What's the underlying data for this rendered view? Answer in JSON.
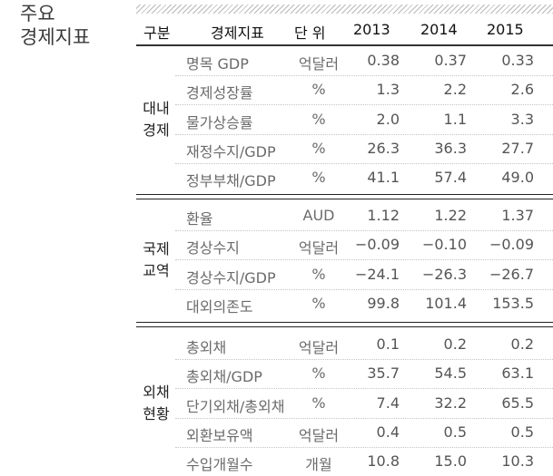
{
  "title": {
    "line1": "주요",
    "line2": "경제지표"
  },
  "header": {
    "category": "구분",
    "indicator": "경제지표",
    "unit": "단 위",
    "years": [
      "2013",
      "2014",
      "2015"
    ]
  },
  "groups": [
    {
      "label": [
        "대내",
        "경제"
      ],
      "rows": [
        {
          "name": "명목 GDP",
          "unit": "억달러",
          "values": [
            "0.38",
            "0.37",
            "0.33"
          ]
        },
        {
          "name": "경제성장률",
          "unit": "%",
          "values": [
            "1.3",
            "2.2",
            "2.6"
          ]
        },
        {
          "name": "물가상승률",
          "unit": "%",
          "values": [
            "2.0",
            "1.1",
            "3.3"
          ]
        },
        {
          "name": "재정수지/GDP",
          "unit": "%",
          "values": [
            "26.3",
            "36.3",
            "27.7"
          ]
        },
        {
          "name": "정부부채/GDP",
          "unit": "%",
          "values": [
            "41.1",
            "57.4",
            "49.0"
          ]
        }
      ]
    },
    {
      "label": [
        "국제",
        "교역"
      ],
      "rows": [
        {
          "name": "환율",
          "unit": "AUD",
          "values": [
            "1.12",
            "1.22",
            "1.37"
          ]
        },
        {
          "name": "경상수지",
          "unit": "억달러",
          "values": [
            "−0.09",
            "−0.10",
            "−0.09"
          ]
        },
        {
          "name": "경상수지/GDP",
          "unit": "%",
          "values": [
            "−24.1",
            "−26.3",
            "−26.7"
          ]
        },
        {
          "name": "대외의존도",
          "unit": "%",
          "values": [
            "99.8",
            "101.4",
            "153.5"
          ]
        }
      ]
    },
    {
      "label": [
        "외채",
        "현황"
      ],
      "rows": [
        {
          "name": "총외채",
          "unit": "억달러",
          "values": [
            "0.1",
            "0.2",
            "0.2"
          ]
        },
        {
          "name": "총외채/GDP",
          "unit": "%",
          "values": [
            "35.7",
            "54.5",
            "63.1"
          ]
        },
        {
          "name": "단기외채/총외채",
          "unit": "%",
          "values": [
            "7.4",
            "32.2",
            "65.5"
          ]
        },
        {
          "name": "외환보유액",
          "unit": "억달러",
          "values": [
            "0.4",
            "0.5",
            "0.5"
          ]
        },
        {
          "name": "수입개월수",
          "unit": "개월",
          "values": [
            "10.8",
            "15.0",
            "10.3"
          ]
        }
      ]
    }
  ]
}
